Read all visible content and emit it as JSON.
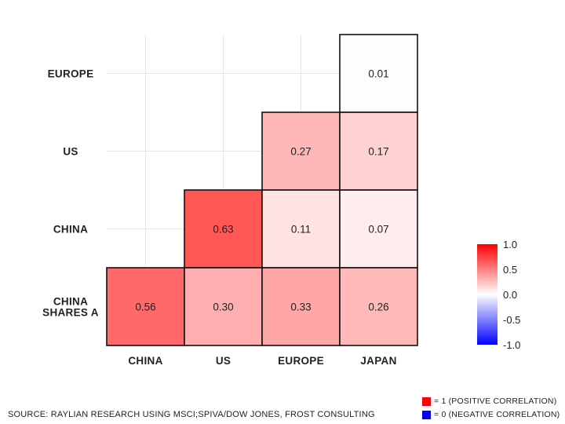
{
  "chart_data": {
    "type": "heatmap",
    "row_labels": [
      "EUROPE",
      "US",
      "CHINA",
      "CHINA SHARES A"
    ],
    "col_labels": [
      "CHINA",
      "US",
      "EUROPE",
      "JAPAN"
    ],
    "values": [
      [
        null,
        null,
        null,
        0.01
      ],
      [
        null,
        null,
        0.27,
        0.17
      ],
      [
        null,
        0.63,
        0.11,
        0.07
      ],
      [
        0.56,
        0.3,
        0.33,
        0.26
      ]
    ],
    "value_labels": [
      [
        null,
        null,
        null,
        "0.01"
      ],
      [
        null,
        null,
        "0.27",
        "0.17"
      ],
      [
        null,
        "0.63",
        "0.11",
        "0.07"
      ],
      [
        "0.56",
        "0.30",
        "0.33",
        "0.26"
      ]
    ],
    "colorbar": {
      "range": [
        -1.0,
        1.0
      ],
      "ticks": [
        {
          "value": 1.0,
          "label": "1.0"
        },
        {
          "value": 0.5,
          "label": "0.5"
        },
        {
          "value": 0.0,
          "label": "0.0"
        },
        {
          "value": -0.5,
          "label": "-0.5"
        },
        {
          "value": -1.0,
          "label": "-1.0"
        }
      ],
      "positive_color": "#ff0000",
      "neutral_color": "#ffffff",
      "negative_color": "#0000ff"
    },
    "grid": true,
    "legend_position": "right"
  },
  "legend_notes": [
    {
      "text": "= 1 (POSITIVE CORRELATION)",
      "color": "#ff0000"
    },
    {
      "text": "= 0 (NEGATIVE CORRELATION)",
      "color": "#0000ff"
    }
  ],
  "source": "SOURCE: RAYLIAN RESEARCH USING MSCI;SPIVA/DOW JONES, FROST CONSULTING"
}
